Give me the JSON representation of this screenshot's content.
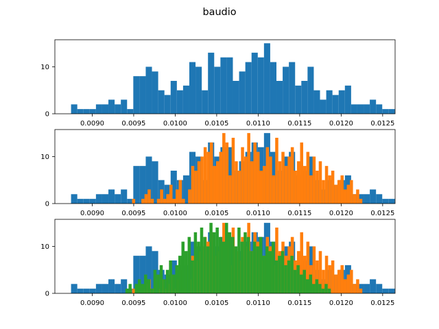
{
  "figure": {
    "title": "baudio"
  },
  "colors": {
    "blue": "#1f77b4",
    "orange": "#ff7f0e",
    "green": "#2ca02c"
  },
  "chart_data": [
    {
      "type": "bar",
      "subtype": "histogram",
      "xlim": [
        0.00855,
        0.01265
      ],
      "ylim": [
        0,
        15.75
      ],
      "xticks": [
        "0.0090",
        "0.0095",
        "0.0100",
        "0.0105",
        "0.0110",
        "0.0115",
        "0.0120",
        "0.0125"
      ],
      "yticks": [
        "0",
        "10"
      ],
      "series": [
        {
          "color": "#1f77b4",
          "x_start": 0.008745,
          "bin_width": 7.5e-05,
          "counts": [
            2,
            1,
            1,
            1,
            2,
            2,
            3,
            2,
            3,
            1,
            8,
            8,
            10,
            9,
            5,
            4,
            7,
            5,
            6,
            11,
            10,
            5,
            13,
            10,
            12,
            12,
            7,
            9,
            11,
            13,
            12,
            15,
            11,
            7,
            10,
            11,
            6,
            7,
            10,
            5,
            3,
            5,
            4,
            5,
            6,
            2,
            2,
            2,
            3,
            2,
            1,
            1,
            1,
            2,
            1,
            2,
            2
          ]
        }
      ]
    },
    {
      "type": "bar",
      "subtype": "histogram",
      "xlim": [
        0.00855,
        0.01265
      ],
      "ylim": [
        0,
        15.75
      ],
      "xticks": [
        "0.0090",
        "0.0095",
        "0.0100",
        "0.0105",
        "0.0110",
        "0.0115",
        "0.0120",
        "0.0125"
      ],
      "yticks": [
        "0",
        "10"
      ],
      "series": [
        {
          "color": "#1f77b4",
          "x_start": 0.008745,
          "bin_width": 7.5e-05,
          "counts": [
            2,
            1,
            1,
            1,
            2,
            2,
            3,
            2,
            3,
            1,
            8,
            8,
            10,
            9,
            5,
            4,
            7,
            5,
            6,
            11,
            10,
            5,
            13,
            10,
            12,
            12,
            7,
            9,
            11,
            13,
            12,
            15,
            11,
            7,
            10,
            11,
            6,
            7,
            10,
            5,
            3,
            5,
            4,
            5,
            6,
            2,
            2,
            2,
            3,
            2,
            1,
            1,
            1,
            2,
            1,
            2,
            2
          ]
        },
        {
          "color": "#ff7f0e",
          "x_start": 0.00948,
          "bin_width": 3.75e-05,
          "counts": [
            1,
            0,
            0,
            1,
            2,
            3,
            1,
            0,
            1,
            3,
            1,
            2,
            4,
            1,
            3,
            5,
            1,
            0,
            3,
            8,
            7,
            9,
            10,
            12,
            11,
            13,
            8,
            9,
            11,
            15,
            13,
            6,
            14,
            9,
            7,
            12,
            10,
            15,
            9,
            13,
            11,
            7,
            8,
            12,
            10,
            6,
            14,
            9,
            11,
            8,
            10,
            12,
            7,
            9,
            13,
            8,
            11,
            6,
            10,
            7,
            9,
            5,
            8,
            6,
            7,
            4,
            5,
            6,
            3,
            4,
            5,
            2,
            3,
            1
          ]
        }
      ]
    },
    {
      "type": "bar",
      "subtype": "histogram",
      "xlim": [
        0.00855,
        0.01265
      ],
      "ylim": [
        0,
        15.75
      ],
      "xticks": [
        "0.0090",
        "0.0095",
        "0.0100",
        "0.0105",
        "0.0110",
        "0.0115",
        "0.0120",
        "0.0125"
      ],
      "yticks": [
        "0",
        "10"
      ],
      "series": [
        {
          "color": "#1f77b4",
          "x_start": 0.008745,
          "bin_width": 7.5e-05,
          "counts": [
            2,
            1,
            1,
            1,
            2,
            2,
            3,
            2,
            3,
            1,
            8,
            8,
            10,
            9,
            5,
            4,
            7,
            5,
            6,
            11,
            10,
            5,
            13,
            10,
            12,
            12,
            7,
            9,
            11,
            13,
            12,
            15,
            11,
            7,
            10,
            11,
            6,
            7,
            10,
            5,
            3,
            5,
            4,
            5,
            6,
            2,
            2,
            2,
            3,
            2,
            1,
            1,
            1,
            2,
            1,
            2,
            2
          ]
        },
        {
          "color": "#ff7f0e",
          "x_start": 0.00948,
          "bin_width": 3.75e-05,
          "counts": [
            1,
            0,
            0,
            1,
            2,
            3,
            1,
            0,
            1,
            3,
            1,
            2,
            4,
            1,
            3,
            5,
            1,
            0,
            3,
            8,
            7,
            9,
            10,
            12,
            11,
            13,
            8,
            9,
            11,
            15,
            13,
            6,
            14,
            9,
            7,
            12,
            10,
            15,
            9,
            13,
            11,
            7,
            8,
            12,
            10,
            6,
            14,
            9,
            11,
            8,
            10,
            12,
            7,
            9,
            13,
            8,
            11,
            6,
            10,
            7,
            9,
            5,
            8,
            6,
            7,
            4,
            5,
            6,
            3,
            4,
            5,
            2,
            3,
            1
          ]
        },
        {
          "color": "#2ca02c",
          "x_start": 0.0094,
          "bin_width": 3.75e-05,
          "counts": [
            1,
            2,
            0,
            2,
            3,
            2,
            4,
            3,
            1,
            5,
            4,
            6,
            3,
            5,
            7,
            4,
            6,
            8,
            11,
            9,
            12,
            7,
            13,
            11,
            14,
            12,
            10,
            15,
            13,
            14,
            12,
            11,
            15,
            13,
            12,
            10,
            14,
            11,
            13,
            12,
            9,
            11,
            10,
            12,
            8,
            10,
            9,
            11,
            7,
            8,
            9,
            6,
            7,
            8,
            5,
            6,
            4,
            5,
            3,
            4,
            2,
            3,
            2,
            1,
            2,
            1
          ]
        }
      ]
    }
  ]
}
